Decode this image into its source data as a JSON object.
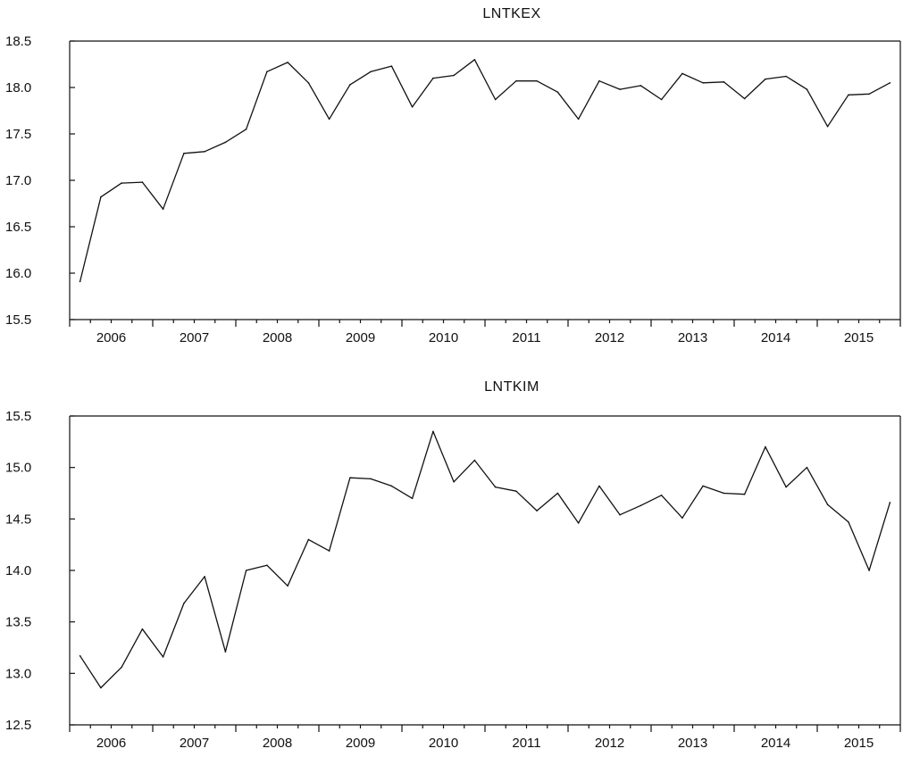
{
  "chart_data": [
    {
      "type": "line",
      "title": "LNTKEX",
      "xlabel": "",
      "ylabel": "",
      "ylim": [
        15.5,
        18.5
      ],
      "yticks": [
        "15.5",
        "16.0",
        "16.5",
        "17.0",
        "17.5",
        "18.0",
        "18.5"
      ],
      "year_labels": [
        "2006",
        "2007",
        "2008",
        "2009",
        "2010",
        "2011",
        "2012",
        "2013",
        "2014",
        "2015"
      ],
      "x": [
        "2006Q1",
        "2006Q2",
        "2006Q3",
        "2006Q4",
        "2007Q1",
        "2007Q2",
        "2007Q3",
        "2007Q4",
        "2008Q1",
        "2008Q2",
        "2008Q3",
        "2008Q4",
        "2009Q1",
        "2009Q2",
        "2009Q3",
        "2009Q4",
        "2010Q1",
        "2010Q2",
        "2010Q3",
        "2010Q4",
        "2011Q1",
        "2011Q2",
        "2011Q3",
        "2011Q4",
        "2012Q1",
        "2012Q2",
        "2012Q3",
        "2012Q4",
        "2013Q1",
        "2013Q2",
        "2013Q3",
        "2013Q4",
        "2014Q1",
        "2014Q2",
        "2014Q3",
        "2014Q4",
        "2015Q1",
        "2015Q2",
        "2015Q3",
        "2015Q4"
      ],
      "series": [
        {
          "values": [
            15.91,
            16.82,
            16.97,
            16.98,
            16.69,
            17.29,
            17.31,
            17.41,
            17.55,
            18.17,
            18.27,
            18.05,
            17.66,
            18.03,
            18.17,
            18.23,
            17.79,
            18.1,
            18.13,
            18.3,
            17.87,
            18.07,
            18.07,
            17.95,
            17.66,
            18.07,
            17.98,
            18.02,
            17.87,
            18.15,
            18.05,
            18.06,
            17.88,
            18.09,
            18.12,
            17.98,
            17.58,
            17.92,
            17.93,
            18.05
          ]
        }
      ],
      "grid": false,
      "legend": "none"
    },
    {
      "type": "line",
      "title": "LNTKIM",
      "xlabel": "",
      "ylabel": "",
      "ylim": [
        12.5,
        15.5
      ],
      "yticks": [
        "12.5",
        "13.0",
        "13.5",
        "14.0",
        "14.5",
        "15.0",
        "15.5"
      ],
      "year_labels": [
        "2006",
        "2007",
        "2008",
        "2009",
        "2010",
        "2011",
        "2012",
        "2013",
        "2014",
        "2015"
      ],
      "x": [
        "2006Q1",
        "2006Q2",
        "2006Q3",
        "2006Q4",
        "2007Q1",
        "2007Q2",
        "2007Q3",
        "2007Q4",
        "2008Q1",
        "2008Q2",
        "2008Q3",
        "2008Q4",
        "2009Q1",
        "2009Q2",
        "2009Q3",
        "2009Q4",
        "2010Q1",
        "2010Q2",
        "2010Q3",
        "2010Q4",
        "2011Q1",
        "2011Q2",
        "2011Q3",
        "2011Q4",
        "2012Q1",
        "2012Q2",
        "2012Q3",
        "2012Q4",
        "2013Q1",
        "2013Q2",
        "2013Q3",
        "2013Q4",
        "2014Q1",
        "2014Q2",
        "2014Q3",
        "2014Q4",
        "2015Q1",
        "2015Q2",
        "2015Q3",
        "2015Q4"
      ],
      "series": [
        {
          "values": [
            13.17,
            12.86,
            13.06,
            13.43,
            13.16,
            13.68,
            13.94,
            13.21,
            14.0,
            14.05,
            13.85,
            14.3,
            14.19,
            14.9,
            14.89,
            14.82,
            14.7,
            15.35,
            14.86,
            15.07,
            14.81,
            14.77,
            14.58,
            14.75,
            14.46,
            14.82,
            14.54,
            14.63,
            14.73,
            14.51,
            14.82,
            14.75,
            14.74,
            15.2,
            14.81,
            15.0,
            14.64,
            14.47,
            14.0,
            14.66
          ]
        }
      ],
      "grid": false,
      "legend": "none"
    }
  ]
}
